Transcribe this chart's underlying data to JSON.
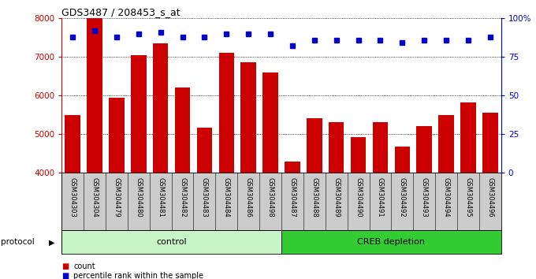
{
  "title": "GDS3487 / 208453_s_at",
  "samples": [
    "GSM304303",
    "GSM304304",
    "GSM304479",
    "GSM304480",
    "GSM304481",
    "GSM304482",
    "GSM304483",
    "GSM304484",
    "GSM304486",
    "GSM304498",
    "GSM304487",
    "GSM304488",
    "GSM304489",
    "GSM304490",
    "GSM304491",
    "GSM304492",
    "GSM304493",
    "GSM304494",
    "GSM304495",
    "GSM304496"
  ],
  "counts": [
    5500,
    8000,
    5950,
    7050,
    7350,
    6200,
    5180,
    7100,
    6850,
    6600,
    4300,
    5420,
    5310,
    4920,
    5310,
    4680,
    5210,
    5500,
    5820,
    5550
  ],
  "percentiles": [
    88,
    92,
    88,
    90,
    91,
    88,
    88,
    90,
    90,
    90,
    82,
    86,
    86,
    86,
    86,
    84,
    86,
    86,
    86,
    88
  ],
  "control_count": 10,
  "creb_count": 10,
  "bar_color": "#cc0000",
  "dot_color": "#0000cc",
  "ylim_left": [
    4000,
    8000
  ],
  "ylim_right": [
    0,
    100
  ],
  "yticks_left": [
    4000,
    5000,
    6000,
    7000,
    8000
  ],
  "yticks_right": [
    0,
    25,
    50,
    75,
    100
  ],
  "yticklabels_right": [
    "0",
    "25",
    "50",
    "75",
    "100%"
  ],
  "bg_color": "#ffffff",
  "label_area_color": "#cccccc",
  "control_color": "#c8f5c8",
  "creb_color": "#33cc33",
  "protocol_label": "protocol",
  "control_label": "control",
  "creb_label": "CREB depletion",
  "legend_count": "count",
  "legend_pct": "percentile rank within the sample"
}
